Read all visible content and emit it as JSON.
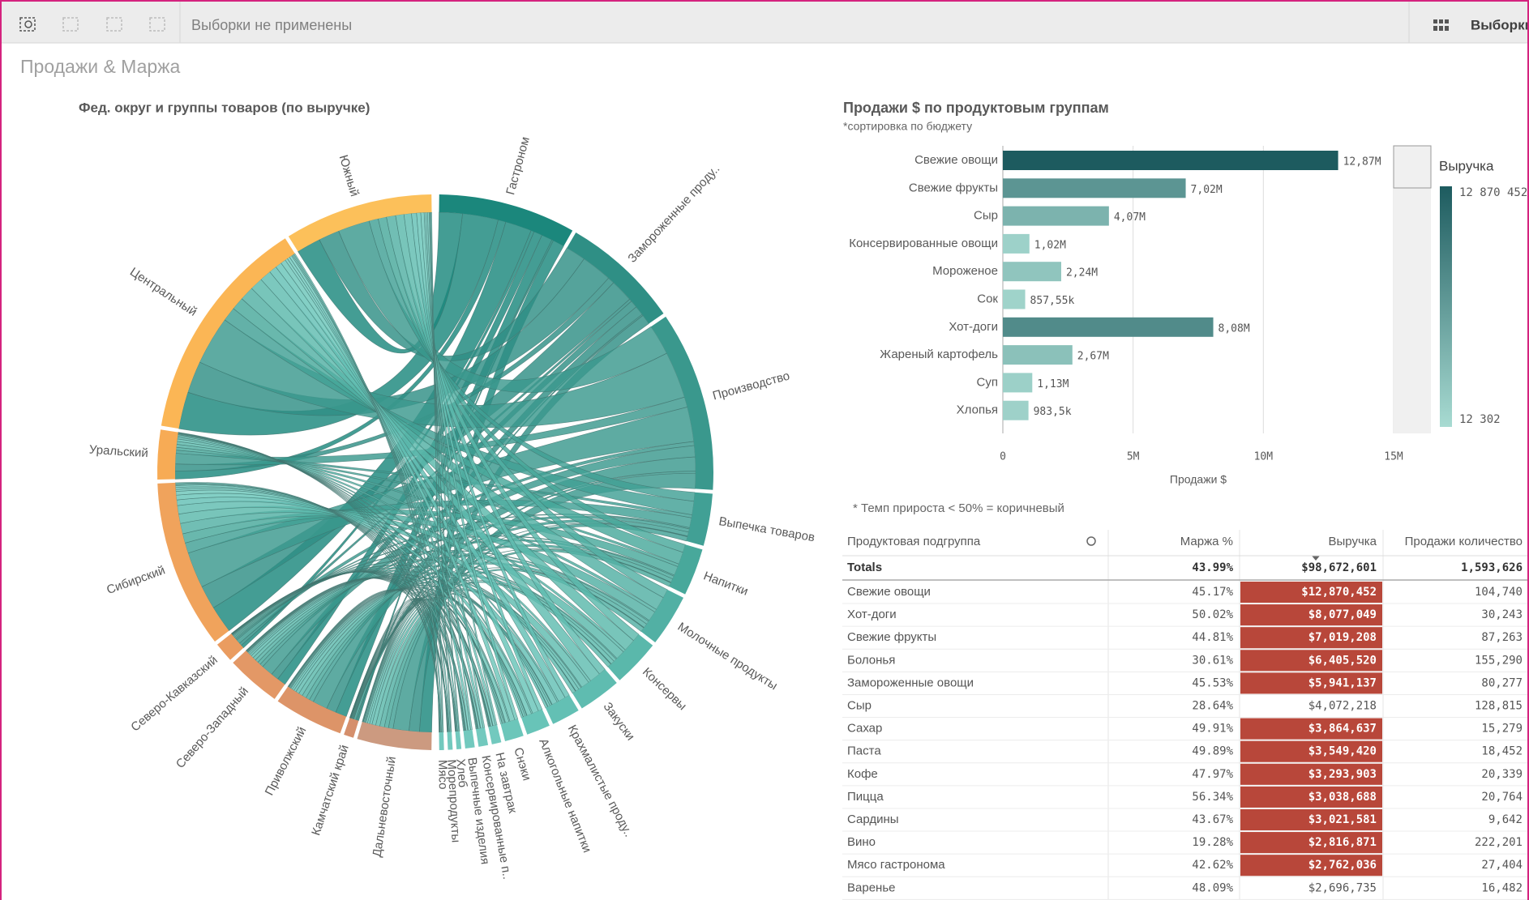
{
  "toolbar": {
    "status": "Выборки не применены",
    "selections": "Выборки"
  },
  "sheet_title": "Продажи & Маржа",
  "chord": {
    "type": "chord",
    "title": "Фед. округ и группы товаров (по выручке)",
    "regions": [
      {
        "name": "Дальневосточный",
        "value": 15,
        "color": "#cc9a80"
      },
      {
        "name": "Камчатский край",
        "value": 2,
        "color": "#d58f6c"
      },
      {
        "name": "Приволжский",
        "value": 14,
        "color": "#dd9468"
      },
      {
        "name": "Северо-Западный",
        "value": 11,
        "color": "#e39866"
      },
      {
        "name": "Северо-Кавказский",
        "value": 4,
        "color": "#ea9c60"
      },
      {
        "name": "Сибирский",
        "value": 34,
        "color": "#f0a35c"
      },
      {
        "name": "Уральский",
        "value": 10,
        "color": "#f7ab55"
      },
      {
        "name": "Центральный",
        "value": 46,
        "color": "#fbb655"
      },
      {
        "name": "Южный",
        "value": 30,
        "color": "#fcc05a"
      }
    ],
    "groups": [
      {
        "name": "Гастроном",
        "value": 29,
        "color": "#1b877c"
      },
      {
        "name": "Замороженные проду..",
        "value": 25,
        "color": "#2f8f85"
      },
      {
        "name": "Производство",
        "value": 38,
        "color": "#3a988d"
      },
      {
        "name": "Выпечка товаров",
        "value": 11,
        "color": "#41a095"
      },
      {
        "name": "Напитки",
        "value": 10,
        "color": "#48a89b"
      },
      {
        "name": "Молочные продукты",
        "value": 11,
        "color": "#52b0a4"
      },
      {
        "name": "Консервы",
        "value": 10,
        "color": "#5ab8ab"
      },
      {
        "name": "Закуски",
        "value": 9,
        "color": "#5fbcb0"
      },
      {
        "name": "Крахмалистые проду..",
        "value": 6,
        "color": "#63c0b4"
      },
      {
        "name": "Алкогольные напитки",
        "value": 5,
        "color": "#68c4b8"
      },
      {
        "name": "Снэки",
        "value": 4,
        "color": "#6cc6ba"
      },
      {
        "name": "На завтрак",
        "value": 2,
        "color": "#72c9be"
      },
      {
        "name": "Консервированные п..",
        "value": 2,
        "color": "#72c9be"
      },
      {
        "name": "Выпечные изделия",
        "value": 2,
        "color": "#72c9be"
      },
      {
        "name": "Хлеб",
        "value": 1,
        "color": "#72c9be"
      },
      {
        "name": "Морепродукты",
        "value": 1,
        "color": "#72c9be"
      },
      {
        "name": "Мясо",
        "value": 1,
        "color": "#72c9be"
      }
    ]
  },
  "bar_chart": {
    "type": "bar",
    "title": "Продажи $ по продуктовым группам",
    "subtitle": "*сортировка по бюджету",
    "categories": [
      "Свежие овощи",
      "Свежие фрукты",
      "Сыр",
      "Консервированные овощи",
      "Мороженое",
      "Сок",
      "Хот-доги",
      "Жареный картофель",
      "Суп",
      "Хлопья"
    ],
    "values": [
      12870452,
      7019208,
      4072218,
      1020000,
      2240000,
      857550,
      8077049,
      2670000,
      1130000,
      983500
    ],
    "value_labels": [
      "12,87M",
      "7,02M",
      "4,07M",
      "1,02M",
      "2,24M",
      "857,55k",
      "8,08M",
      "2,67M",
      "1,13M",
      "983,5k"
    ],
    "xlim": [
      0,
      15000000
    ],
    "xticks": [
      0,
      {
        "value": 5000000,
        "label": "5M"
      },
      {
        "value": 10000000,
        "label": "10M"
      },
      {
        "value": 15000000,
        "label": "15M"
      }
    ],
    "xlabel": "Продажи $",
    "grid": true,
    "legend": {
      "title": "Выручка",
      "max": {
        "value": 12870452,
        "label": "12 870 452"
      },
      "min": {
        "value": 12302,
        "label": "12 302"
      },
      "max_color": "#1d5b5f",
      "min_color": "#a8dbd2"
    }
  },
  "note": "* Темп прироста < 50% = коричневый",
  "table": {
    "columns": [
      "Продуктовая подгруппа",
      "Маржа %",
      "Выручка",
      "Продажи количество"
    ],
    "totals": [
      "Totals",
      "43.99%",
      "$98,672,601",
      "1,593,626"
    ],
    "rows": [
      [
        "Свежие овощи",
        "45.17%",
        "$12,870,452",
        "104,740"
      ],
      [
        "Хот-доги",
        "50.02%",
        "$8,077,049",
        "30,243"
      ],
      [
        "Свежие фрукты",
        "44.81%",
        "$7,019,208",
        "87,263"
      ],
      [
        "Болонья",
        "30.61%",
        "$6,405,520",
        "155,290"
      ],
      [
        "Замороженные овощи",
        "45.53%",
        "$5,941,137",
        "80,277"
      ],
      [
        "Сыр",
        "28.64%",
        "$4,072,218",
        "128,815"
      ],
      [
        "Сахар",
        "49.91%",
        "$3,864,637",
        "15,279"
      ],
      [
        "Паста",
        "49.89%",
        "$3,549,420",
        "18,452"
      ],
      [
        "Кофе",
        "47.97%",
        "$3,293,903",
        "20,339"
      ],
      [
        "Пицца",
        "56.34%",
        "$3,038,688",
        "20,764"
      ],
      [
        "Сардины",
        "43.67%",
        "$3,021,581",
        "9,642"
      ],
      [
        "Вино",
        "19.28%",
        "$2,816,871",
        "222,201"
      ],
      [
        "Мясо гастронома",
        "42.62%",
        "$2,762,036",
        "27,404"
      ],
      [
        "Варенье",
        "48.09%",
        "$2,696,735",
        "16,482"
      ]
    ],
    "highlight_color": "#b8473a",
    "highlighted_rows": [
      0,
      1,
      2,
      3,
      4,
      6,
      7,
      8,
      9,
      10,
      11,
      12
    ]
  }
}
